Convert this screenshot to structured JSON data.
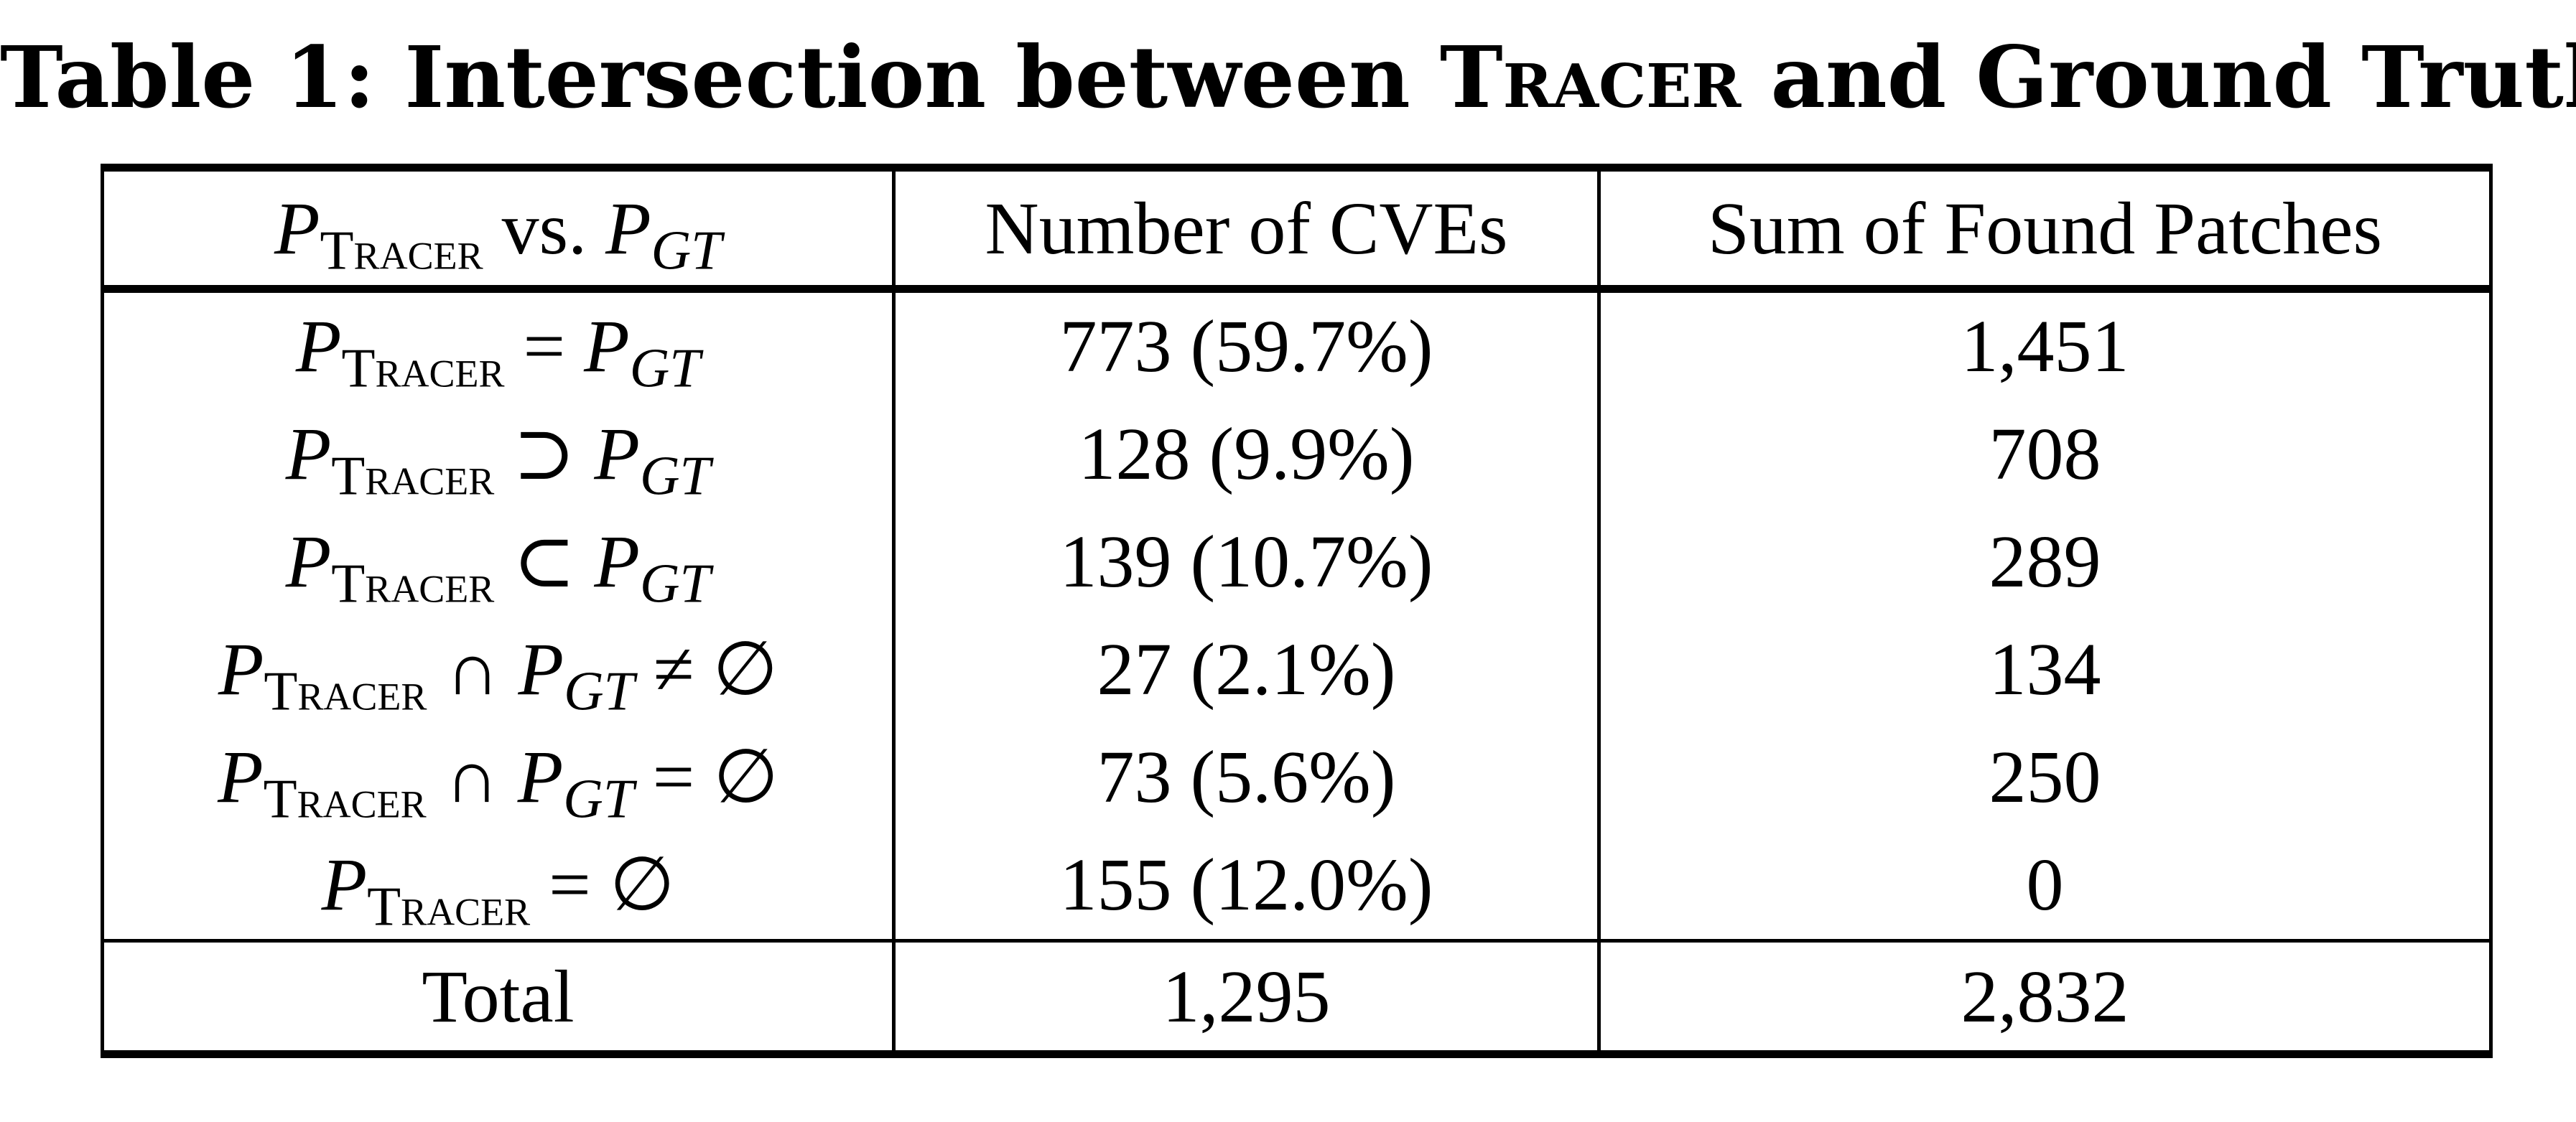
{
  "caption": {
    "prefix": "Table 1: Intersection between ",
    "tool": "Tracer",
    "suffix": " and Ground Truth"
  },
  "table": {
    "header": {
      "col1": {
        "left_symbol": "P",
        "left_subscript": "Tracer",
        "operator": "vs.",
        "right_symbol": "P",
        "right_subscript": "GT"
      },
      "col2": "Number of CVEs",
      "col3": "Sum of Found Patches"
    },
    "rows": [
      {
        "relation": {
          "left_symbol": "P",
          "left_subscript": "Tracer",
          "operator": "=",
          "right_symbol": "P",
          "right_subscript": "GT",
          "tail": ""
        },
        "num_cves": "773 (59.7%)",
        "found_patches": "1,451"
      },
      {
        "relation": {
          "left_symbol": "P",
          "left_subscript": "Tracer",
          "operator": "⊃",
          "right_symbol": "P",
          "right_subscript": "GT",
          "tail": ""
        },
        "num_cves": "128 (9.9%)",
        "found_patches": "708"
      },
      {
        "relation": {
          "left_symbol": "P",
          "left_subscript": "Tracer",
          "operator": "⊂",
          "right_symbol": "P",
          "right_subscript": "GT",
          "tail": ""
        },
        "num_cves": "139 (10.7%)",
        "found_patches": "289"
      },
      {
        "relation": {
          "left_symbol": "P",
          "left_subscript": "Tracer",
          "operator": "∩",
          "right_symbol": "P",
          "right_subscript": "GT",
          "tail": "≠ ∅"
        },
        "num_cves": "27 (2.1%)",
        "found_patches": "134"
      },
      {
        "relation": {
          "left_symbol": "P",
          "left_subscript": "Tracer",
          "operator": "∩",
          "right_symbol": "P",
          "right_subscript": "GT",
          "tail": "= ∅"
        },
        "num_cves": "73 (5.6%)",
        "found_patches": "250"
      },
      {
        "relation": {
          "left_symbol": "P",
          "left_subscript": "Tracer",
          "operator": "=",
          "right_symbol": "∅",
          "right_subscript": "",
          "tail": ""
        },
        "num_cves": "155 (12.0%)",
        "found_patches": "0"
      }
    ],
    "total": {
      "label": "Total",
      "num_cves": "1,295",
      "found_patches": "2,832"
    }
  }
}
